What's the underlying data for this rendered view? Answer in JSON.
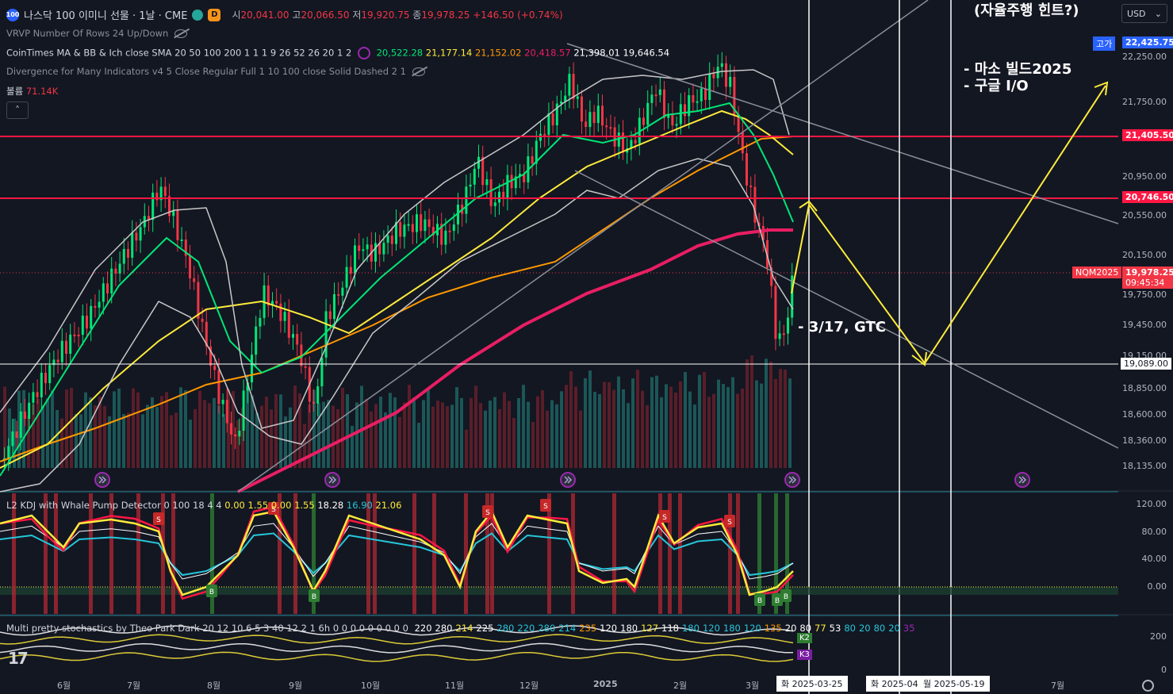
{
  "header": {
    "logo_text": "100",
    "title": "나스닥 100 이미니 선물 · 1날 · CME",
    "status_letter": "D",
    "open_label": "시",
    "open": "20,041.00",
    "high_label": "고",
    "high": "20,066.50",
    "low_label": "저",
    "low": "19,920.75",
    "close_label": "종",
    "close": "19,978.25",
    "change": "+146.50 (+0.74%)"
  },
  "indicators": {
    "vrvp": "VRVP Number Of Rows 24 Up/Down",
    "ma_bb": "CoinTimes MA & BB & Ich close SMA 20 50 100 200 1 1 1 9 26 52 26 20 1 2",
    "ma_values": [
      "20,522.28",
      "21,177.14",
      "21,152.02",
      "20,418.57",
      "21,398.01",
      "19,646.54"
    ],
    "divergence": "Divergence for Many Indicators v4 5 Close Regular Full 1 10 100 close Solid Dashed 2 1",
    "volume_label": "볼륨",
    "volume_value": "71.14K",
    "collapse_glyph": "˄"
  },
  "currency": {
    "label": "USD",
    "chevron": "⌄"
  },
  "price_axis": {
    "ticks": [
      "22,250.00",
      "21,750.00",
      "20,950.00",
      "20,550.00",
      "20,150.00",
      "19,750.00",
      "19,450.00",
      "19,150.00",
      "18,850.00",
      "18,600.00",
      "18,360.00",
      "18,135.00"
    ],
    "high_tag_label": "고가",
    "high_tag_value": "22,425.75",
    "level_1": "21,405.50",
    "level_2": "20,746.50",
    "symbol_tag": "NQM2025",
    "last_price": "19,978.25",
    "countdown": "09:45:34",
    "horizontal_level": "19,089.00"
  },
  "annotations": {
    "top_cut": "(자율주행 힌트?)",
    "line1": "- 마소 빌드2025",
    "line2": "- 구글 I/O",
    "gtc": "- 3/17, GTC"
  },
  "kdj": {
    "title": "L2 KDJ with Whale Pump Detector 0 100 18 4 4",
    "v1": "0.00",
    "v2": "1.55",
    "v3": "0.00",
    "v4": "1.55",
    "v5": "18.28",
    "v6": "16.90",
    "v7": "21.06",
    "ticks": [
      "120.00",
      "80.00",
      "40.00",
      "0.00"
    ],
    "sell_label": "S",
    "buy_label": "B"
  },
  "stoch": {
    "title": "Multi pretty stochastics by Theo Park Dark 20 12 10 6 5 3 40 12 2 1 6h",
    "zeros": "0 0 0 0 0 0 0 0 0",
    "values": [
      "220",
      "280",
      "214",
      "225",
      "280",
      "220",
      "280",
      "214",
      "235",
      "120",
      "180",
      "127",
      "118",
      "180",
      "120",
      "180",
      "120",
      "135",
      "20",
      "80",
      "77",
      "53",
      "80",
      "20",
      "80",
      "20",
      "35"
    ],
    "ticks": [
      "200",
      "0"
    ],
    "k2": "K2",
    "k3": "K3"
  },
  "time_axis": {
    "months": [
      "6월",
      "7월",
      "8월",
      "9월",
      "10월",
      "11월",
      "12월",
      "2025",
      "2월",
      "3월",
      "7월"
    ],
    "date_tags": [
      "화 2025-03-25",
      "화 2025-04",
      "월 2025-05-19"
    ]
  },
  "colors": {
    "background": "#131722",
    "up": "#22ab94",
    "down": "#f23645",
    "resistance": "#ff1744",
    "ma200": "#e91e63",
    "ma100": "#ff9800",
    "ma50": "#ffeb3b",
    "ma20": "#00e676",
    "bb": "#c8c8c8",
    "arrow": "#ffeb3b"
  },
  "watermark": "17"
}
